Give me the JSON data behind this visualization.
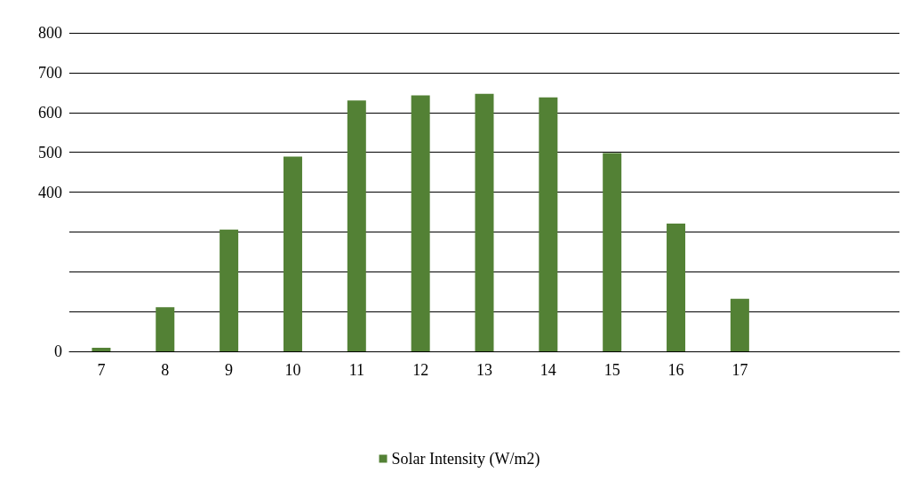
{
  "chart_data": {
    "type": "bar",
    "categories": [
      "7",
      "8",
      "9",
      "10",
      "11",
      "12",
      "13",
      "14",
      "15",
      "16",
      "17",
      null,
      null
    ],
    "series": [
      {
        "name": "Solar Intensity (W/m2)",
        "color": "#538135",
        "values": [
          9,
          111,
          306,
          489,
          630,
          643,
          647,
          638,
          498,
          321,
          132,
          null,
          null
        ]
      }
    ],
    "ylim": [
      0,
      800
    ],
    "yticks": [
      0,
      {
        "value": 100,
        "label": null
      },
      {
        "value": 200,
        "label": null
      },
      {
        "value": 300,
        "label": null
      },
      400,
      500,
      600,
      700,
      800
    ],
    "grid": "y",
    "legend": "bottom"
  }
}
